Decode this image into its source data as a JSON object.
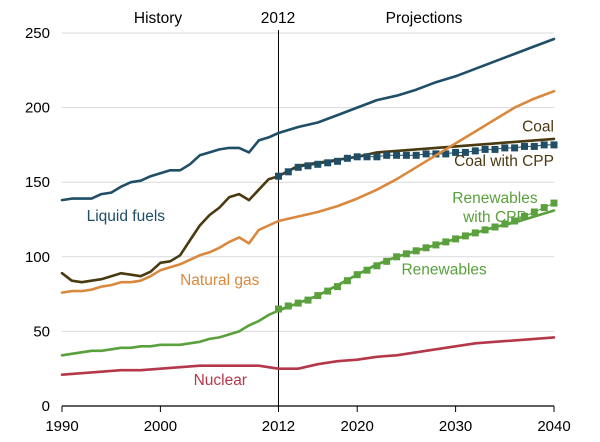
{
  "chart_data": {
    "type": "line",
    "header": {
      "history": "History",
      "split_year": "2012",
      "projections": "Projections"
    },
    "xlim": [
      1990,
      2040
    ],
    "ylim": [
      0,
      250
    ],
    "x_ticks": [
      1990,
      2000,
      2012,
      2020,
      2030,
      2040
    ],
    "y_ticks": [
      0,
      50,
      100,
      150,
      200,
      250
    ],
    "split_x": 2012,
    "grid": "horizontal",
    "series": [
      {
        "name": "Liquid fuels",
        "color": "#1f4e66",
        "style": "line",
        "label_color": "#1f4e66",
        "label_lines": [
          "Liquid fuels"
        ],
        "label_pos": [
          1992.5,
          124
        ],
        "label_anchor": "start",
        "x": [
          1990,
          1991,
          1992,
          1993,
          1994,
          1995,
          1996,
          1997,
          1998,
          1999,
          2000,
          2001,
          2002,
          2003,
          2004,
          2005,
          2006,
          2007,
          2008,
          2009,
          2010,
          2011,
          2012,
          2014,
          2016,
          2018,
          2020,
          2022,
          2024,
          2026,
          2028,
          2030,
          2032,
          2034,
          2036,
          2038,
          2040
        ],
        "y": [
          138,
          139,
          139,
          139,
          142,
          143,
          147,
          150,
          151,
          154,
          156,
          158,
          158,
          162,
          168,
          170,
          172,
          173,
          173,
          170,
          178,
          180,
          183,
          187,
          190,
          195,
          200,
          205,
          208,
          212,
          217,
          221,
          226,
          231,
          236,
          241,
          246
        ]
      },
      {
        "name": "Coal",
        "color": "#4a3a12",
        "style": "line",
        "label_color": "#4a3a12",
        "label_lines": [
          "Coal"
        ],
        "label_pos": [
          2040,
          184
        ],
        "label_anchor": "end",
        "x": [
          1990,
          1991,
          1992,
          1993,
          1994,
          1995,
          1996,
          1997,
          1998,
          1999,
          2000,
          2001,
          2002,
          2003,
          2004,
          2005,
          2006,
          2007,
          2008,
          2009,
          2010,
          2011,
          2012,
          2014,
          2016,
          2018,
          2020,
          2022,
          2024,
          2026,
          2028,
          2030,
          2032,
          2034,
          2036,
          2038,
          2040
        ],
        "y": [
          89,
          84,
          83,
          84,
          85,
          87,
          89,
          88,
          87,
          90,
          96,
          97,
          101,
          111,
          121,
          128,
          133,
          140,
          142,
          138,
          145,
          152,
          154,
          161,
          163,
          165,
          167,
          170,
          171,
          172,
          173,
          174,
          175,
          176,
          177,
          178,
          179
        ]
      },
      {
        "name": "Coal with CPP",
        "color": "#1f4e66",
        "style": "markers",
        "label_color": "#4a3a12",
        "label_lines": [
          "Coal with CPP"
        ],
        "label_pos": [
          2040,
          161
        ],
        "label_anchor": "end",
        "x": [
          2012,
          2013,
          2014,
          2015,
          2016,
          2017,
          2018,
          2019,
          2020,
          2021,
          2022,
          2023,
          2024,
          2025,
          2026,
          2027,
          2028,
          2029,
          2030,
          2031,
          2032,
          2033,
          2034,
          2035,
          2036,
          2037,
          2038,
          2039,
          2040
        ],
        "y": [
          154,
          157,
          160,
          161,
          162,
          163,
          164,
          166,
          167,
          167,
          167,
          168,
          168,
          168,
          168,
          169,
          169,
          169,
          170,
          170,
          171,
          172,
          172,
          173,
          173,
          174,
          174,
          175,
          175
        ]
      },
      {
        "name": "Natural gas",
        "color": "#d9883d",
        "style": "line",
        "label_color": "#d9883d",
        "label_lines": [
          "Natural gas"
        ],
        "label_pos": [
          2002,
          81
        ],
        "label_anchor": "start",
        "x": [
          1990,
          1991,
          1992,
          1993,
          1994,
          1995,
          1996,
          1997,
          1998,
          1999,
          2000,
          2001,
          2002,
          2003,
          2004,
          2005,
          2006,
          2007,
          2008,
          2009,
          2010,
          2011,
          2012,
          2014,
          2016,
          2018,
          2020,
          2022,
          2024,
          2026,
          2028,
          2030,
          2032,
          2034,
          2036,
          2038,
          2040
        ],
        "y": [
          76,
          77,
          77,
          78,
          80,
          81,
          83,
          83,
          84,
          87,
          91,
          93,
          95,
          98,
          101,
          103,
          106,
          110,
          113,
          109,
          118,
          121,
          124,
          127,
          130,
          134,
          139,
          145,
          152,
          160,
          168,
          176,
          184,
          192,
          200,
          206,
          211
        ]
      },
      {
        "name": "Renewables with CPP",
        "color": "#5aa03c",
        "style": "markers",
        "label_color": "#5aa03c",
        "label_lines": [
          "Renewables",
          "with CPP"
        ],
        "label_pos": [
          2034,
          136
        ],
        "label_anchor": "middle",
        "x": [
          2012,
          2013,
          2014,
          2015,
          2016,
          2017,
          2018,
          2019,
          2020,
          2021,
          2022,
          2023,
          2024,
          2025,
          2026,
          2027,
          2028,
          2029,
          2030,
          2031,
          2032,
          2033,
          2034,
          2035,
          2036,
          2037,
          2038,
          2039,
          2040
        ],
        "y": [
          65,
          67,
          69,
          71,
          74,
          77,
          80,
          84,
          88,
          91,
          94,
          97,
          100,
          102,
          104,
          106,
          108,
          110,
          112,
          114,
          116,
          118,
          120,
          122,
          124,
          127,
          130,
          133,
          136
        ]
      },
      {
        "name": "Renewables",
        "color": "#5aa03c",
        "style": "line",
        "label_color": "#5aa03c",
        "label_lines": [
          "Renewables"
        ],
        "label_pos": [
          2024.5,
          88
        ],
        "label_anchor": "start",
        "x": [
          1990,
          1991,
          1992,
          1993,
          1994,
          1995,
          1996,
          1997,
          1998,
          1999,
          2000,
          2001,
          2002,
          2003,
          2004,
          2005,
          2006,
          2007,
          2008,
          2009,
          2010,
          2011,
          2012,
          2014,
          2016,
          2018,
          2020,
          2022,
          2024,
          2026,
          2028,
          2030,
          2032,
          2034,
          2036,
          2038,
          2040
        ],
        "y": [
          34,
          35,
          36,
          37,
          37,
          38,
          39,
          39,
          40,
          40,
          41,
          41,
          41,
          42,
          43,
          45,
          46,
          48,
          50,
          54,
          57,
          61,
          64,
          69,
          74,
          81,
          88,
          95,
          100,
          104,
          108,
          112,
          116,
          120,
          123,
          127,
          131
        ]
      },
      {
        "name": "Nuclear",
        "color": "#b5384a",
        "style": "line",
        "label_color": "#b5384a",
        "label_lines": [
          "Nuclear"
        ],
        "label_pos": [
          2008.8,
          14
        ],
        "label_anchor": "end",
        "x": [
          1990,
          1992,
          1994,
          1996,
          1998,
          2000,
          2002,
          2004,
          2006,
          2008,
          2010,
          2011,
          2012,
          2014,
          2016,
          2018,
          2020,
          2022,
          2024,
          2026,
          2028,
          2030,
          2032,
          2034,
          2036,
          2038,
          2040
        ],
        "y": [
          21,
          22,
          23,
          24,
          24,
          25,
          26,
          27,
          27,
          27,
          27,
          26,
          25,
          25,
          28,
          30,
          31,
          33,
          34,
          36,
          38,
          40,
          42,
          43,
          44,
          45,
          46
        ]
      }
    ]
  }
}
